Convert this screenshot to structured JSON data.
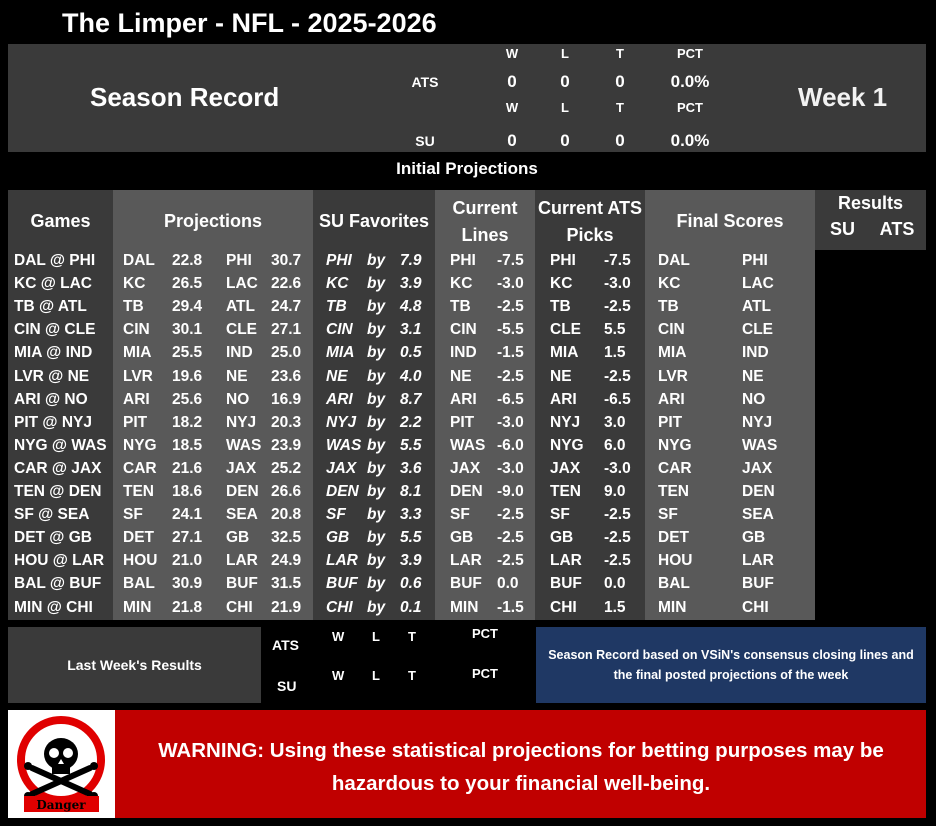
{
  "title": "The Limper - NFL - 2025-2026",
  "season_label": "Season Record",
  "week_label": "Week 1",
  "record": {
    "ats": {
      "label": "ATS",
      "w_label": "W",
      "l_label": "L",
      "t_label": "T",
      "pct_label": "PCT",
      "w": "0",
      "l": "0",
      "t": "0",
      "pct": "0.0%"
    },
    "su": {
      "label": "SU",
      "w_label": "W",
      "l_label": "L",
      "t_label": "T",
      "pct_label": "PCT",
      "w": "0",
      "l": "0",
      "t": "0",
      "pct": "0.0%"
    }
  },
  "section_title": "Initial Projections",
  "headers": {
    "games": "Games",
    "projections": "Projections",
    "su_favorites": "SU Favorites",
    "current_lines_1": "Current",
    "current_lines_2": "Lines",
    "current_ats_1": "Current ATS",
    "current_ats_2": "Picks",
    "final_scores": "Final Scores",
    "results": "Results",
    "results_su": "SU",
    "results_ats": "ATS"
  },
  "by_label": "by",
  "games": [
    {
      "game": "DAL @ PHI",
      "away": "DAL",
      "away_pts": "22.8",
      "home": "PHI",
      "home_pts": "30.7",
      "fav": "PHI",
      "fav_by": "7.9",
      "line_team": "PHI",
      "line": "-7.5",
      "pick_team": "PHI",
      "pick_line": "-7.5",
      "final_away": "DAL",
      "final_home": "PHI"
    },
    {
      "game": "KC @ LAC",
      "away": "KC",
      "away_pts": "26.5",
      "home": "LAC",
      "home_pts": "22.6",
      "fav": "KC",
      "fav_by": "3.9",
      "line_team": "KC",
      "line": "-3.0",
      "pick_team": "KC",
      "pick_line": "-3.0",
      "final_away": "KC",
      "final_home": "LAC"
    },
    {
      "game": "TB @ ATL",
      "away": "TB",
      "away_pts": "29.4",
      "home": "ATL",
      "home_pts": "24.7",
      "fav": "TB",
      "fav_by": "4.8",
      "line_team": "TB",
      "line": "-2.5",
      "pick_team": "TB",
      "pick_line": "-2.5",
      "final_away": "TB",
      "final_home": "ATL"
    },
    {
      "game": "CIN @ CLE",
      "away": "CIN",
      "away_pts": "30.1",
      "home": "CLE",
      "home_pts": "27.1",
      "fav": "CIN",
      "fav_by": "3.1",
      "line_team": "CIN",
      "line": "-5.5",
      "pick_team": "CLE",
      "pick_line": "5.5",
      "final_away": "CIN",
      "final_home": "CLE"
    },
    {
      "game": "MIA @ IND",
      "away": "MIA",
      "away_pts": "25.5",
      "home": "IND",
      "home_pts": "25.0",
      "fav": "MIA",
      "fav_by": "0.5",
      "line_team": "IND",
      "line": "-1.5",
      "pick_team": "MIA",
      "pick_line": "1.5",
      "final_away": "MIA",
      "final_home": "IND"
    },
    {
      "game": "LVR @ NE",
      "away": "LVR",
      "away_pts": "19.6",
      "home": "NE",
      "home_pts": "23.6",
      "fav": "NE",
      "fav_by": "4.0",
      "line_team": "NE",
      "line": "-2.5",
      "pick_team": "NE",
      "pick_line": "-2.5",
      "final_away": "LVR",
      "final_home": "NE"
    },
    {
      "game": "ARI @ NO",
      "away": "ARI",
      "away_pts": "25.6",
      "home": "NO",
      "home_pts": "16.9",
      "fav": "ARI",
      "fav_by": "8.7",
      "line_team": "ARI",
      "line": "-6.5",
      "pick_team": "ARI",
      "pick_line": "-6.5",
      "final_away": "ARI",
      "final_home": "NO"
    },
    {
      "game": "PIT @ NYJ",
      "away": "PIT",
      "away_pts": "18.2",
      "home": "NYJ",
      "home_pts": "20.3",
      "fav": "NYJ",
      "fav_by": "2.2",
      "line_team": "PIT",
      "line": "-3.0",
      "pick_team": "NYJ",
      "pick_line": "3.0",
      "final_away": "PIT",
      "final_home": "NYJ"
    },
    {
      "game": "NYG @ WAS",
      "away": "NYG",
      "away_pts": "18.5",
      "home": "WAS",
      "home_pts": "23.9",
      "fav": "WAS",
      "fav_by": "5.5",
      "line_team": "WAS",
      "line": "-6.0",
      "pick_team": "NYG",
      "pick_line": "6.0",
      "final_away": "NYG",
      "final_home": "WAS"
    },
    {
      "game": "CAR @ JAX",
      "away": "CAR",
      "away_pts": "21.6",
      "home": "JAX",
      "home_pts": "25.2",
      "fav": "JAX",
      "fav_by": "3.6",
      "line_team": "JAX",
      "line": "-3.0",
      "pick_team": "JAX",
      "pick_line": "-3.0",
      "final_away": "CAR",
      "final_home": "JAX"
    },
    {
      "game": "TEN @ DEN",
      "away": "TEN",
      "away_pts": "18.6",
      "home": "DEN",
      "home_pts": "26.6",
      "fav": "DEN",
      "fav_by": "8.1",
      "line_team": "DEN",
      "line": "-9.0",
      "pick_team": "TEN",
      "pick_line": "9.0",
      "final_away": "TEN",
      "final_home": "DEN"
    },
    {
      "game": "SF @ SEA",
      "away": "SF",
      "away_pts": "24.1",
      "home": "SEA",
      "home_pts": "20.8",
      "fav": "SF",
      "fav_by": "3.3",
      "line_team": "SF",
      "line": "-2.5",
      "pick_team": "SF",
      "pick_line": "-2.5",
      "final_away": "SF",
      "final_home": "SEA"
    },
    {
      "game": "DET @ GB",
      "away": "DET",
      "away_pts": "27.1",
      "home": "GB",
      "home_pts": "32.5",
      "fav": "GB",
      "fav_by": "5.5",
      "line_team": "GB",
      "line": "-2.5",
      "pick_team": "GB",
      "pick_line": "-2.5",
      "final_away": "DET",
      "final_home": "GB"
    },
    {
      "game": "HOU @ LAR",
      "away": "HOU",
      "away_pts": "21.0",
      "home": "LAR",
      "home_pts": "24.9",
      "fav": "LAR",
      "fav_by": "3.9",
      "line_team": "LAR",
      "line": "-2.5",
      "pick_team": "LAR",
      "pick_line": "-2.5",
      "final_away": "HOU",
      "final_home": "LAR"
    },
    {
      "game": "BAL @ BUF",
      "away": "BAL",
      "away_pts": "30.9",
      "home": "BUF",
      "home_pts": "31.5",
      "fav": "BUF",
      "fav_by": "0.6",
      "line_team": "BUF",
      "line": "0.0",
      "pick_team": "BUF",
      "pick_line": "0.0",
      "final_away": "BAL",
      "final_home": "BUF"
    },
    {
      "game": "MIN @ CHI",
      "away": "MIN",
      "away_pts": "21.8",
      "home": "CHI",
      "home_pts": "21.9",
      "fav": "CHI",
      "fav_by": "0.1",
      "line_team": "MIN",
      "line": "-1.5",
      "pick_team": "CHI",
      "pick_line": "1.5",
      "final_away": "MIN",
      "final_home": "CHI"
    }
  ],
  "last_week": {
    "label": "Last Week's Results",
    "ats_label": "ATS",
    "su_label": "SU",
    "w_label": "W",
    "l_label": "L",
    "t_label": "T",
    "pct_label": "PCT"
  },
  "note": "Season Record based on VSiN's consensus closing lines and the final posted projections of the week",
  "danger_label": "Danger",
  "warning": "WARNING: Using these statistical projections for betting purposes may be hazardous to your financial well-being.",
  "colors": {
    "band_dark": "#3a3a3a",
    "band_mid": "#595959",
    "note_bg": "#1f3864",
    "warning_bg": "#c00000"
  }
}
